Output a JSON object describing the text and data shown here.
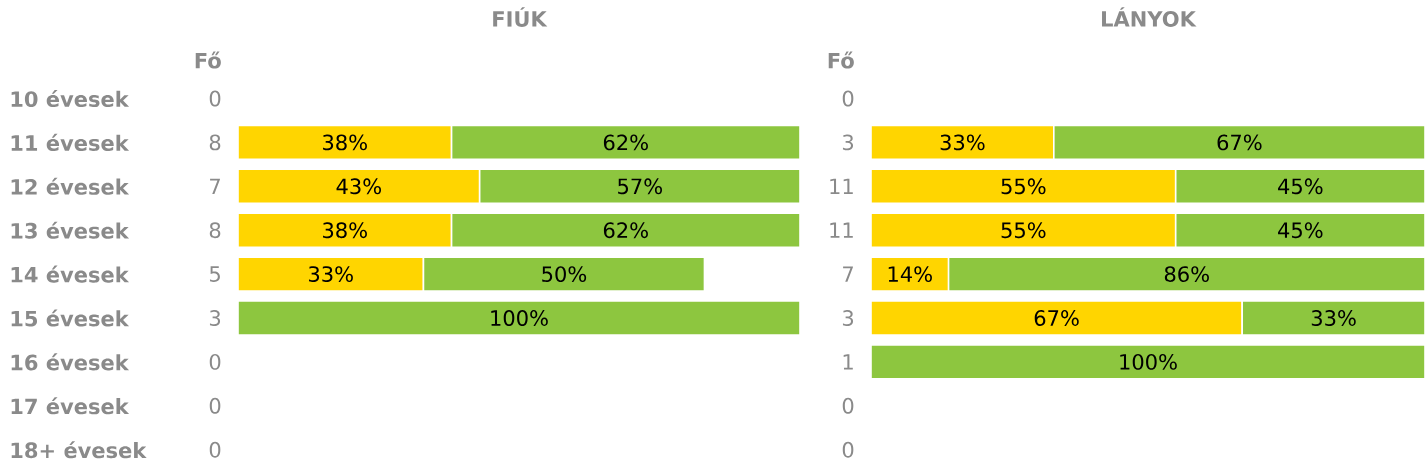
{
  "chart_data": [
    {
      "type": "bar",
      "orientation": "horizontal",
      "stacked": true,
      "title": "FIÚK",
      "y2label": "Fő",
      "tick_labels": "y",
      "xlim": [
        0,
        100
      ],
      "categories": [
        "10 évesek",
        "11 évesek",
        "12 évesek",
        "13 évesek",
        "14 évesek",
        "15 évesek",
        "16 évesek",
        "17 évesek",
        "18+ évesek"
      ],
      "y2_categories": [
        "0",
        "8",
        "7",
        "8",
        "5",
        "3",
        "0",
        "0",
        "0"
      ],
      "series": [
        {
          "color": "#ffd500",
          "values": [
            null,
            38,
            43,
            38,
            33,
            null,
            null,
            null,
            null
          ],
          "value_labels": [
            null,
            "38%",
            "43%",
            "38%",
            "33%",
            null,
            null,
            null,
            null
          ]
        },
        {
          "color": "#8dc63f",
          "values": [
            null,
            62,
            57,
            62,
            50,
            100,
            null,
            null,
            null
          ],
          "value_labels": [
            null,
            "62%",
            "57%",
            "62%",
            "50%",
            "100%",
            null,
            null,
            null
          ]
        }
      ]
    },
    {
      "type": "bar",
      "orientation": "horizontal",
      "stacked": true,
      "title": "LÁNYOK",
      "y2label": "Fő",
      "tick_labels": false,
      "xlim": [
        0,
        100
      ],
      "categories": [
        null,
        null,
        null,
        null,
        null,
        null,
        null,
        null,
        null
      ],
      "y2_categories": [
        "0",
        "3",
        "11",
        "11",
        "7",
        "3",
        "1",
        "0",
        "0"
      ],
      "series": [
        {
          "color": "#ffd500",
          "values": [
            null,
            33,
            55,
            55,
            14,
            67,
            null,
            null,
            null
          ],
          "value_labels": [
            null,
            "33%",
            "55%",
            "55%",
            "14%",
            "67%",
            null,
            null,
            null
          ]
        },
        {
          "color": "#8dc63f",
          "values": [
            null,
            67,
            45,
            45,
            86,
            33,
            100,
            null,
            null
          ],
          "value_labels": [
            null,
            "67%",
            "45%",
            "45%",
            "86%",
            "33%",
            "100%",
            null,
            null
          ]
        }
      ]
    }
  ]
}
